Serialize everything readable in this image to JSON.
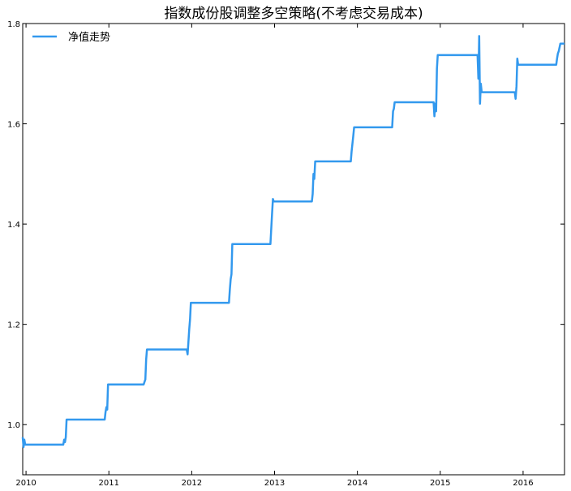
{
  "chart_data": {
    "type": "line",
    "title": "指数成份股调整多空策略(不考虑交易成本)",
    "xlabel": "",
    "ylabel": "",
    "x_ticks": [
      "2010",
      "2011",
      "2012",
      "2013",
      "2014",
      "2015",
      "2016"
    ],
    "y_ticks": [
      "1.0",
      "1.2",
      "1.4",
      "1.6",
      "1.8"
    ],
    "xlim": [
      2009.96,
      2016.5
    ],
    "ylim": [
      0.9,
      1.8
    ],
    "grid": false,
    "legend_position": "top-left",
    "series": [
      {
        "name": "净值走势",
        "color": "#3399ee",
        "x": [
          2009.96,
          2009.97,
          2009.98,
          2009.99,
          2010.0,
          2010.45,
          2010.46,
          2010.47,
          2010.48,
          2010.49,
          2010.95,
          2010.96,
          2010.97,
          2010.98,
          2010.99,
          2011.42,
          2011.43,
          2011.44,
          2011.45,
          2011.46,
          2011.94,
          2011.95,
          2011.96,
          2011.97,
          2011.98,
          2011.99,
          2012.45,
          2012.46,
          2012.47,
          2012.48,
          2012.49,
          2012.95,
          2012.96,
          2012.97,
          2012.98,
          2012.99,
          2013.45,
          2013.46,
          2013.47,
          2013.48,
          2013.49,
          2013.92,
          2013.93,
          2013.94,
          2013.95,
          2013.96,
          2014.42,
          2014.43,
          2014.44,
          2014.45,
          2014.92,
          2014.93,
          2014.94,
          2014.95,
          2014.96,
          2014.97,
          2015.45,
          2015.46,
          2015.47,
          2015.48,
          2015.49,
          2015.5,
          2015.9,
          2015.91,
          2015.92,
          2015.93,
          2015.94,
          2016.4,
          2016.41,
          2016.42,
          2016.43,
          2016.45,
          2016.5
        ],
        "values": [
          0.975,
          0.955,
          0.97,
          0.96,
          0.96,
          0.96,
          0.97,
          0.965,
          0.975,
          1.01,
          1.01,
          1.025,
          1.035,
          1.03,
          1.08,
          1.08,
          1.085,
          1.09,
          1.13,
          1.15,
          1.15,
          1.14,
          1.165,
          1.19,
          1.21,
          1.243,
          1.243,
          1.27,
          1.29,
          1.3,
          1.36,
          1.36,
          1.39,
          1.42,
          1.45,
          1.445,
          1.445,
          1.46,
          1.5,
          1.49,
          1.525,
          1.525,
          1.545,
          1.56,
          1.575,
          1.593,
          1.593,
          1.625,
          1.63,
          1.643,
          1.643,
          1.615,
          1.64,
          1.625,
          1.71,
          1.737,
          1.737,
          1.69,
          1.775,
          1.64,
          1.68,
          1.663,
          1.663,
          1.65,
          1.675,
          1.73,
          1.718,
          1.718,
          1.73,
          1.74,
          1.745,
          1.76,
          1.76
        ]
      }
    ]
  }
}
